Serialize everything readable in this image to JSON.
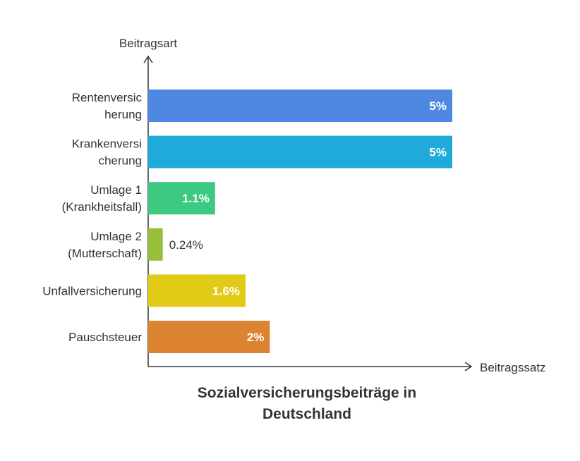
{
  "chart_data": {
    "type": "bar",
    "orientation": "horizontal",
    "title": "Sozialversicherungsbeiträge in\nDeutschland",
    "xlabel": "Beitragssatz",
    "ylabel": "Beitragsart",
    "xlim": [
      0,
      5
    ],
    "grid": false,
    "categories": [
      [
        "Rentenversic",
        "herung"
      ],
      [
        "Krankenversi",
        "cherung"
      ],
      [
        "Umlage 1",
        "(Krankheitsfall)"
      ],
      [
        "Umlage 2",
        "(Mutterschaft)"
      ],
      [
        "Unfallversicherung"
      ],
      [
        "Pauschsteuer"
      ]
    ],
    "values": [
      5,
      5,
      1.1,
      0.24,
      1.6,
      2
    ],
    "value_labels": [
      "5%",
      "5%",
      "1.1%",
      "0.24%",
      "1.6%",
      "2%"
    ],
    "colors": [
      "#4F88E3",
      "#1FAADB",
      "#3EC983",
      "#97BF3A",
      "#E1CB16",
      "#DD8432"
    ]
  }
}
